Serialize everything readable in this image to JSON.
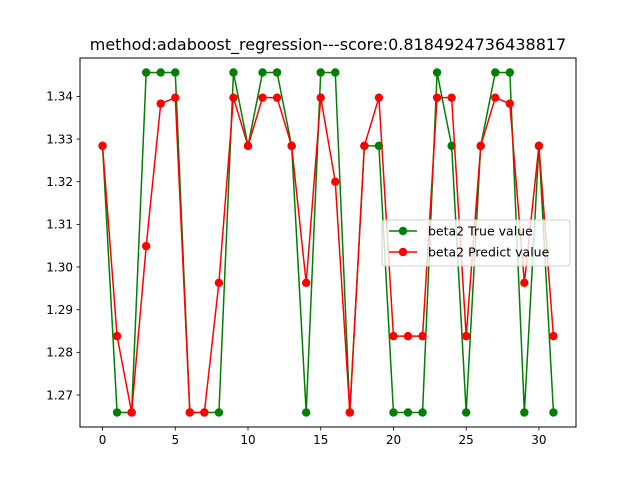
{
  "chart_data": {
    "type": "line",
    "title": "method:adaboost_regression---score:0.8184924736438817",
    "xlabel": "",
    "ylabel": "",
    "xlim": [
      -1.55,
      32.55
    ],
    "ylim": [
      1.2625,
      1.349
    ],
    "x_ticks": [
      0,
      5,
      10,
      15,
      20,
      25,
      30
    ],
    "y_ticks": [
      1.27,
      1.28,
      1.29,
      1.3,
      1.31,
      1.32,
      1.33,
      1.34
    ],
    "y_tick_labels": [
      "1.27",
      "1.28",
      "1.29",
      "1.30",
      "1.31",
      "1.32",
      "1.33",
      "1.34"
    ],
    "grid": false,
    "legend_position": "center-right",
    "x": [
      0,
      1,
      2,
      3,
      4,
      5,
      6,
      7,
      8,
      9,
      10,
      11,
      12,
      13,
      14,
      15,
      16,
      17,
      18,
      19,
      20,
      21,
      22,
      23,
      24,
      25,
      26,
      27,
      28,
      29,
      30,
      31
    ],
    "series": [
      {
        "name": "beta2 True value",
        "color": "#008000",
        "values": [
          1.3284,
          1.2659,
          1.2659,
          1.3456,
          1.3456,
          1.3456,
          1.2659,
          1.2659,
          1.2659,
          1.3456,
          1.3284,
          1.3456,
          1.3456,
          1.3284,
          1.2659,
          1.3456,
          1.3456,
          1.2659,
          1.3284,
          1.3284,
          1.2659,
          1.2659,
          1.2659,
          1.3456,
          1.3284,
          1.2659,
          1.3284,
          1.3456,
          1.3456,
          1.2659,
          1.3284,
          1.2659
        ]
      },
      {
        "name": "beta2 Predict value",
        "color": "#ff0000",
        "values": [
          1.3284,
          1.2838,
          1.2659,
          1.3049,
          1.3383,
          1.3397,
          1.2659,
          1.2659,
          1.2963,
          1.3397,
          1.3284,
          1.3397,
          1.3397,
          1.3284,
          1.2963,
          1.3397,
          1.32,
          1.2659,
          1.3284,
          1.3397,
          1.2838,
          1.2838,
          1.2838,
          1.3397,
          1.3397,
          1.2838,
          1.3284,
          1.3397,
          1.3383,
          1.2963,
          1.3284,
          1.2838
        ]
      }
    ]
  }
}
